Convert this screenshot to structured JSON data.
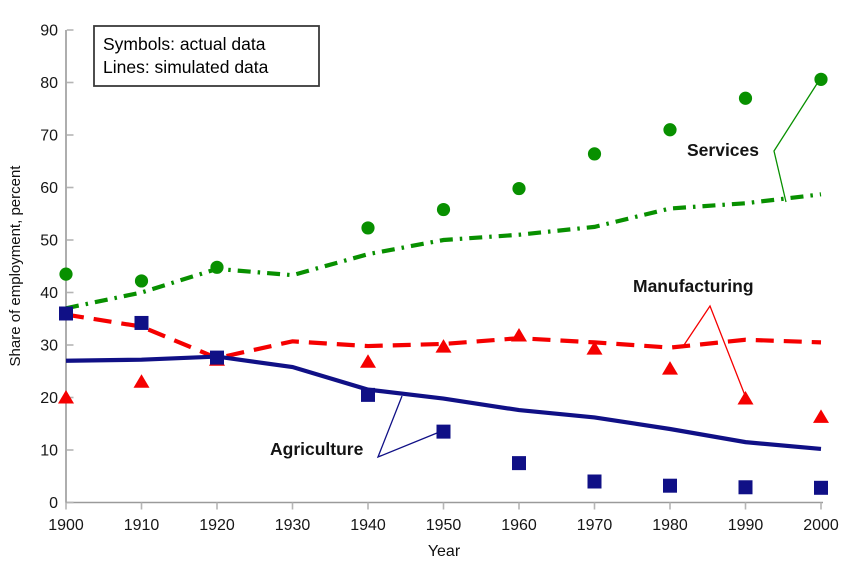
{
  "figure": {
    "note": {
      "line1": "Symbols: actual data",
      "line2": "Lines: simulated data"
    },
    "series_labels": {
      "services": "Services",
      "manufacturing": "Manufacturing",
      "agriculture": "Agriculture"
    },
    "colors": {
      "services": "#089000",
      "manufacturing": "#F50000",
      "agriculture": "#101086",
      "axis_line": "#9a9a9a",
      "tick": "#b5b5b5",
      "text": "#141414"
    }
  },
  "chart_data": {
    "type": "line",
    "title": "",
    "xlabel": "Year",
    "ylabel": "Share of employment, percent",
    "xlim": [
      1900,
      2000
    ],
    "ylim": [
      0,
      90
    ],
    "xticks": [
      1900,
      1910,
      1920,
      1930,
      1940,
      1950,
      1960,
      1970,
      1980,
      1990,
      2000
    ],
    "yticks": [
      0,
      10,
      20,
      30,
      40,
      50,
      60,
      70,
      80,
      90
    ],
    "grid": false,
    "legend_note": [
      "Symbols: actual data",
      "Lines: simulated data"
    ],
    "series": [
      {
        "name": "Services",
        "kind": "actual",
        "marker": "circle",
        "color": "#089000",
        "x": [
          1900,
          1910,
          1920,
          1940,
          1950,
          1960,
          1970,
          1980,
          1990,
          2000
        ],
        "y": [
          43.5,
          42.2,
          44.8,
          52.3,
          55.8,
          59.8,
          66.4,
          71.0,
          77.0,
          80.6
        ]
      },
      {
        "name": "Services",
        "kind": "simulated",
        "line_style": "dash-dot",
        "color": "#089000",
        "x": [
          1900,
          1910,
          1920,
          1930,
          1940,
          1950,
          1960,
          1970,
          1980,
          1990,
          2000
        ],
        "y": [
          37.0,
          40.0,
          44.5,
          43.3,
          47.3,
          50.0,
          51.0,
          52.5,
          56.0,
          57.0,
          58.7
        ]
      },
      {
        "name": "Manufacturing",
        "kind": "actual",
        "marker": "triangle",
        "color": "#F50000",
        "x": [
          1900,
          1910,
          1920,
          1940,
          1950,
          1960,
          1970,
          1980,
          1990,
          2000
        ],
        "y": [
          20.0,
          23.0,
          27.2,
          26.8,
          29.7,
          31.8,
          29.3,
          25.5,
          19.8,
          16.3
        ]
      },
      {
        "name": "Manufacturing",
        "kind": "simulated",
        "line_style": "dash",
        "color": "#F50000",
        "x": [
          1900,
          1910,
          1920,
          1930,
          1940,
          1950,
          1960,
          1970,
          1980,
          1990,
          2000
        ],
        "y": [
          35.8,
          33.5,
          27.5,
          30.7,
          29.8,
          30.2,
          31.3,
          30.5,
          29.5,
          31.0,
          30.5
        ]
      },
      {
        "name": "Agriculture",
        "kind": "actual",
        "marker": "square",
        "color": "#101086",
        "x": [
          1900,
          1910,
          1920,
          1940,
          1950,
          1960,
          1970,
          1980,
          1990,
          2000
        ],
        "y": [
          36.0,
          34.2,
          27.6,
          20.5,
          13.5,
          7.5,
          4.0,
          3.2,
          2.9,
          2.8
        ]
      },
      {
        "name": "Agriculture",
        "kind": "simulated",
        "line_style": "solid",
        "color": "#101086",
        "x": [
          1900,
          1910,
          1920,
          1930,
          1940,
          1950,
          1960,
          1970,
          1980,
          1990,
          2000
        ],
        "y": [
          27.0,
          27.2,
          27.8,
          25.8,
          21.5,
          19.8,
          17.6,
          16.2,
          14.0,
          11.5,
          10.2
        ]
      }
    ]
  }
}
